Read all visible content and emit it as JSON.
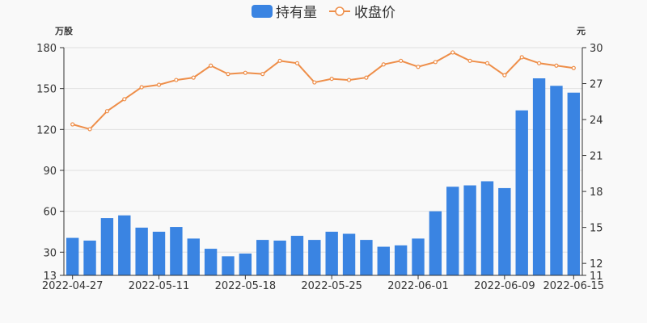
{
  "colors": {
    "bar": "#3a84e2",
    "line": "#ee8e49",
    "axis": "#333333",
    "grid": "#e0e0e0"
  },
  "chart_data": {
    "type": "bar+line",
    "legend": {
      "position": "top-center",
      "items": [
        {
          "name": "持有量",
          "icon": "rounded-rect"
        },
        {
          "name": "收盘价",
          "icon": "line-circle"
        }
      ]
    },
    "y_left": {
      "unit": "万股",
      "min": 13,
      "max": 180,
      "ticks": [
        "13",
        "30",
        "60",
        "90",
        "120",
        "150",
        "180"
      ]
    },
    "y_right": {
      "unit": "元",
      "min": 11,
      "max": 30,
      "ticks": [
        "11",
        "12",
        "15",
        "18",
        "21",
        "24",
        "27",
        "30"
      ]
    },
    "x_labels": [
      "2022-04-27",
      "2022-05-11",
      "2022-05-18",
      "2022-05-25",
      "2022-06-01",
      "2022-06-09",
      "2022-06-15"
    ],
    "x_label_index": [
      0,
      5,
      10,
      15,
      20,
      25,
      29
    ],
    "grid": true,
    "series": [
      {
        "name": "持有量",
        "type": "bar",
        "axis": "left",
        "values": [
          40.5,
          38.5,
          55,
          57,
          48,
          45,
          48.5,
          40,
          32.5,
          27,
          29,
          39,
          38.5,
          42,
          39,
          45,
          43.5,
          39,
          34,
          35,
          40,
          60,
          78,
          79,
          82,
          77,
          134,
          157.5,
          152,
          147
        ]
      },
      {
        "name": "收盘价",
        "type": "line",
        "axis": "right",
        "values": [
          23.6,
          23.2,
          24.7,
          25.7,
          26.7,
          26.9,
          27.3,
          27.5,
          28.5,
          27.8,
          27.9,
          27.8,
          28.9,
          28.7,
          27.1,
          27.4,
          27.3,
          27.5,
          28.6,
          28.9,
          28.4,
          28.8,
          29.6,
          28.9,
          28.7,
          27.7,
          29.2,
          28.7,
          28.5,
          28.3
        ]
      }
    ]
  }
}
